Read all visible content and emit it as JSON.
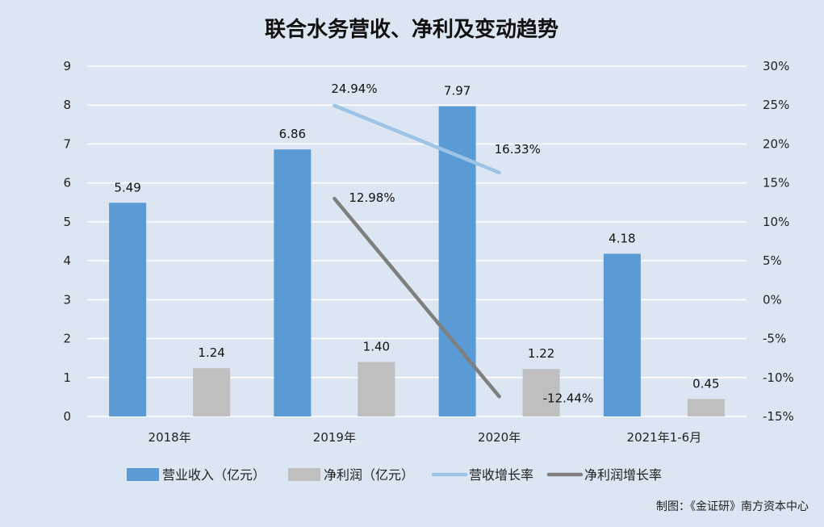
{
  "chart_data": {
    "type": "bar",
    "title": "联合水务营收、净利及变动趋势",
    "categories": [
      "2018年",
      "2019年",
      "2020年",
      "2021年1-6月"
    ],
    "series": [
      {
        "name": "营业收入（亿元）",
        "kind": "bar",
        "axis": "left",
        "color": "#5b9bd5",
        "values": [
          5.49,
          6.86,
          7.97,
          4.18
        ],
        "labels": [
          "5.49",
          "6.86",
          "7.97",
          "4.18"
        ]
      },
      {
        "name": "净利润（亿元）",
        "kind": "bar",
        "axis": "left",
        "color": "#bfbfbf",
        "values": [
          1.24,
          1.4,
          1.22,
          0.45
        ],
        "labels": [
          "1.24",
          "1.40",
          "1.22",
          "0.45"
        ]
      },
      {
        "name": "营收增长率",
        "kind": "line",
        "axis": "right",
        "color": "#9dc3e6",
        "values": [
          null,
          24.94,
          16.33,
          null
        ],
        "labels": [
          "",
          "24.94%",
          "16.33%",
          ""
        ]
      },
      {
        "name": "净利润增长率",
        "kind": "line",
        "axis": "right",
        "color": "#7f7f7f",
        "values": [
          null,
          12.98,
          -12.44,
          null
        ],
        "labels": [
          "",
          "12.98%",
          "-12.44%",
          ""
        ]
      }
    ],
    "y_left": {
      "min": 0,
      "max": 9,
      "ticks": [
        "0",
        "1",
        "2",
        "3",
        "4",
        "5",
        "6",
        "7",
        "8",
        "9"
      ]
    },
    "y_right": {
      "min": -15,
      "max": 30,
      "ticks": [
        "-15%",
        "-10%",
        "-5%",
        "0%",
        "5%",
        "10%",
        "15%",
        "20%",
        "25%",
        "30%"
      ]
    },
    "grid": true,
    "legend_position": "bottom"
  },
  "source": "制图：《金证研》南方资本中心",
  "colors": {
    "background": "#dce6f2",
    "grid": "#ffffff"
  }
}
